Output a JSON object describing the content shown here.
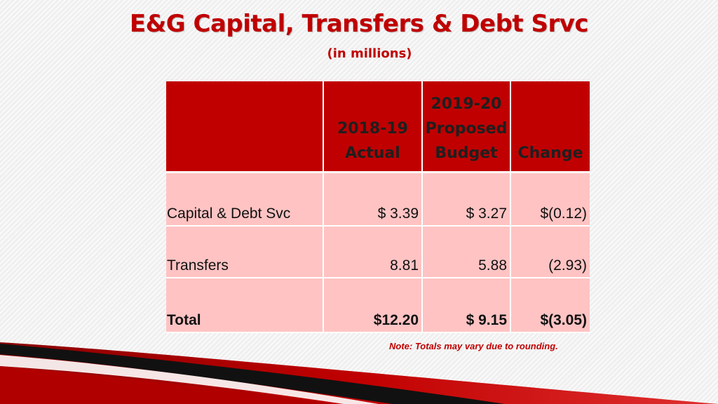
{
  "slide": {
    "title": "E&G Capital, Transfers & Debt Srvc",
    "subtitle": "(in millions)",
    "note": "Note: Totals may vary due to rounding."
  },
  "table": {
    "headers": [
      "",
      "2018-19\nActual",
      "2019-20\nProposed\nBudget",
      "Change"
    ],
    "rows": [
      {
        "label": "Capital & Debt Svc",
        "actual": "$ 3.39",
        "proposed": "$ 3.27",
        "change": "$(0.12)"
      },
      {
        "label": "Transfers",
        "actual": "8.81",
        "proposed": "5.88",
        "change": "(2.93)"
      },
      {
        "label": "Total",
        "actual": "$12.20",
        "proposed": "$ 9.15",
        "change": "$(3.05)"
      }
    ]
  },
  "colors": {
    "accent": "#c00000",
    "header_fill": "#c00000",
    "cell_fill": "#ffc3c3"
  }
}
